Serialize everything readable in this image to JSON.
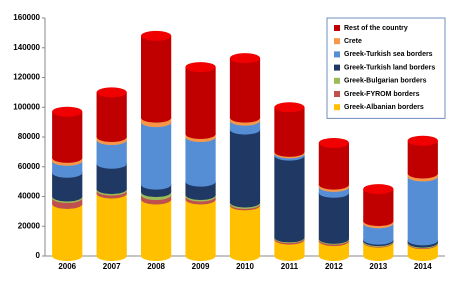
{
  "chart_data": {
    "type": "bar",
    "stacked": true,
    "categories": [
      "2006",
      "2007",
      "2008",
      "2009",
      "2010",
      "2011",
      "2012",
      "2013",
      "2014"
    ],
    "series": [
      {
        "name": "Greek-Albanian borders",
        "color": "#ffc000",
        "values": [
          35000,
          42000,
          38000,
          38000,
          34000,
          11000,
          10000,
          9000,
          8000
        ]
      },
      {
        "name": "Greek-FYROM borders",
        "color": "#c0504d",
        "values": [
          4000,
          2000,
          3000,
          2000,
          1000,
          1000,
          1000,
          500,
          500
        ]
      },
      {
        "name": "Greek-Bulgarian borders",
        "color": "#9bbb59",
        "values": [
          1000,
          1000,
          2000,
          1000,
          1000,
          500,
          500,
          500,
          500
        ]
      },
      {
        "name": "Greek-Turkish land borders",
        "color": "#1f3864",
        "values": [
          16000,
          17000,
          5000,
          9000,
          49000,
          55000,
          31000,
          1000,
          1500
        ]
      },
      {
        "name": "Greek-Turkish sea borders",
        "color": "#558ed5",
        "values": [
          8000,
          16000,
          42000,
          30000,
          6000,
          1500,
          4000,
          11000,
          43000
        ]
      },
      {
        "name": "Crete",
        "color": "#f79646",
        "values": [
          2000,
          2000,
          3000,
          2000,
          2000,
          1000,
          1500,
          1500,
          2000
        ]
      },
      {
        "name": "Rest of the country",
        "color": "#c00000",
        "values": [
          31000,
          30000,
          55000,
          45000,
          40000,
          30000,
          28000,
          21500,
          22000
        ]
      }
    ],
    "ylim": [
      0,
      160000
    ],
    "yticks": [
      0,
      20000,
      40000,
      60000,
      80000,
      100000,
      120000,
      140000,
      160000
    ],
    "grid": false,
    "legend": "upper right"
  }
}
